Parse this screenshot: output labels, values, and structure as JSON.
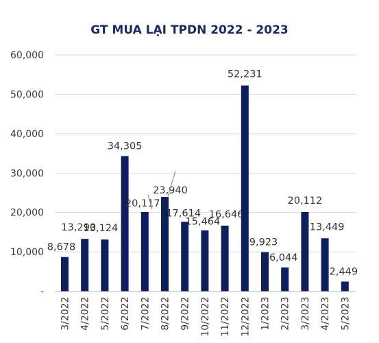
{
  "chart_data": {
    "type": "bar",
    "title": "GT MUA LẠI TPDN 2022 - 2023",
    "categories": [
      "3/2022",
      "4/2022",
      "5/2022",
      "6/2022",
      "7/2022",
      "8/2022",
      "9/2022",
      "10/2022",
      "11/2022",
      "12/2022",
      "1/2023",
      "2/2023",
      "3/2023",
      "4/2023",
      "5/2023"
    ],
    "values": [
      8678,
      13290,
      13124,
      34305,
      20117,
      23940,
      17614,
      15464,
      16646,
      52231,
      9923,
      6044,
      20112,
      13449,
      2449
    ],
    "data_labels": [
      "8,678",
      "13,290",
      "13,124",
      "34,305",
      "20,117",
      "23,940",
      "17,614",
      "15,464",
      "16,646",
      "52,231",
      "9,923",
      "6,044",
      "20,112",
      "13,449",
      "2,449"
    ],
    "y_ticks": [
      0,
      10000,
      20000,
      30000,
      40000,
      50000,
      60000
    ],
    "y_tick_labels": [
      "-",
      "10,000",
      "20,000",
      "30,000",
      "40,000",
      "50,000",
      "60,000"
    ],
    "ylim": [
      0,
      60000
    ],
    "xlabel": "",
    "ylabel": "",
    "grid": true,
    "legend": "none",
    "colors": {
      "bar": "#0f1f5c",
      "grid": "#d9d9d9",
      "title": "#1f2a5c"
    }
  }
}
